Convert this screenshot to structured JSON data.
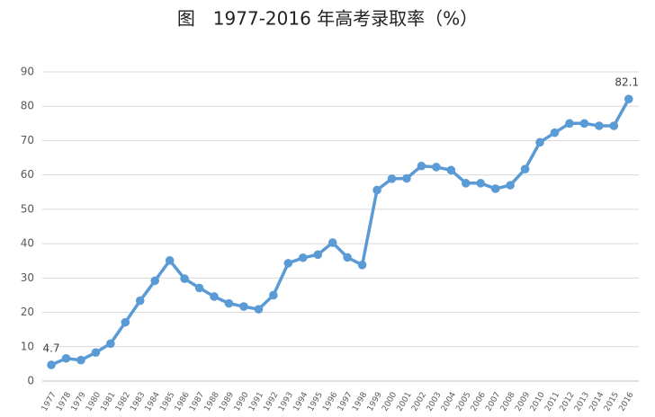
{
  "chart_data": {
    "type": "line",
    "title": "图　1977-2016 年高考录取率（%）",
    "categories": [
      "1977",
      "1978",
      "1979",
      "1980",
      "1981",
      "1982",
      "1983",
      "1984",
      "1985",
      "1986",
      "1987",
      "1988",
      "1989",
      "1990",
      "1991",
      "1992",
      "1993",
      "1994",
      "1995",
      "1996",
      "1997",
      "1998",
      "1999",
      "2000",
      "2001",
      "2002",
      "2003",
      "2004",
      "2005",
      "2006",
      "2007",
      "2008",
      "2009",
      "2010",
      "2011",
      "2012",
      "2013",
      "2014",
      "2015",
      "2016"
    ],
    "values": [
      4.7,
      6.6,
      6.1,
      8.3,
      10.9,
      17.1,
      23.4,
      29.2,
      35.1,
      29.8,
      27.1,
      24.6,
      22.6,
      21.7,
      20.9,
      25.0,
      34.3,
      35.9,
      36.8,
      40.3,
      36.0,
      33.8,
      55.6,
      58.9,
      59.0,
      62.6,
      62.3,
      61.4,
      57.6,
      57.6,
      56.0,
      57.0,
      61.7,
      69.5,
      72.3,
      75.0,
      75.0,
      74.3,
      74.3,
      82.1
    ],
    "value_labels": [
      "4.7",
      null,
      null,
      null,
      null,
      null,
      null,
      null,
      null,
      null,
      null,
      null,
      null,
      null,
      null,
      null,
      null,
      null,
      null,
      null,
      null,
      null,
      null,
      null,
      null,
      null,
      null,
      null,
      null,
      null,
      null,
      null,
      null,
      null,
      null,
      null,
      null,
      null,
      null,
      "82.1"
    ],
    "color": "#5b9bd5",
    "ylim": [
      0,
      90
    ],
    "yticks": [
      0,
      10,
      20,
      30,
      40,
      50,
      60,
      70,
      80,
      90
    ],
    "grid": true
  }
}
